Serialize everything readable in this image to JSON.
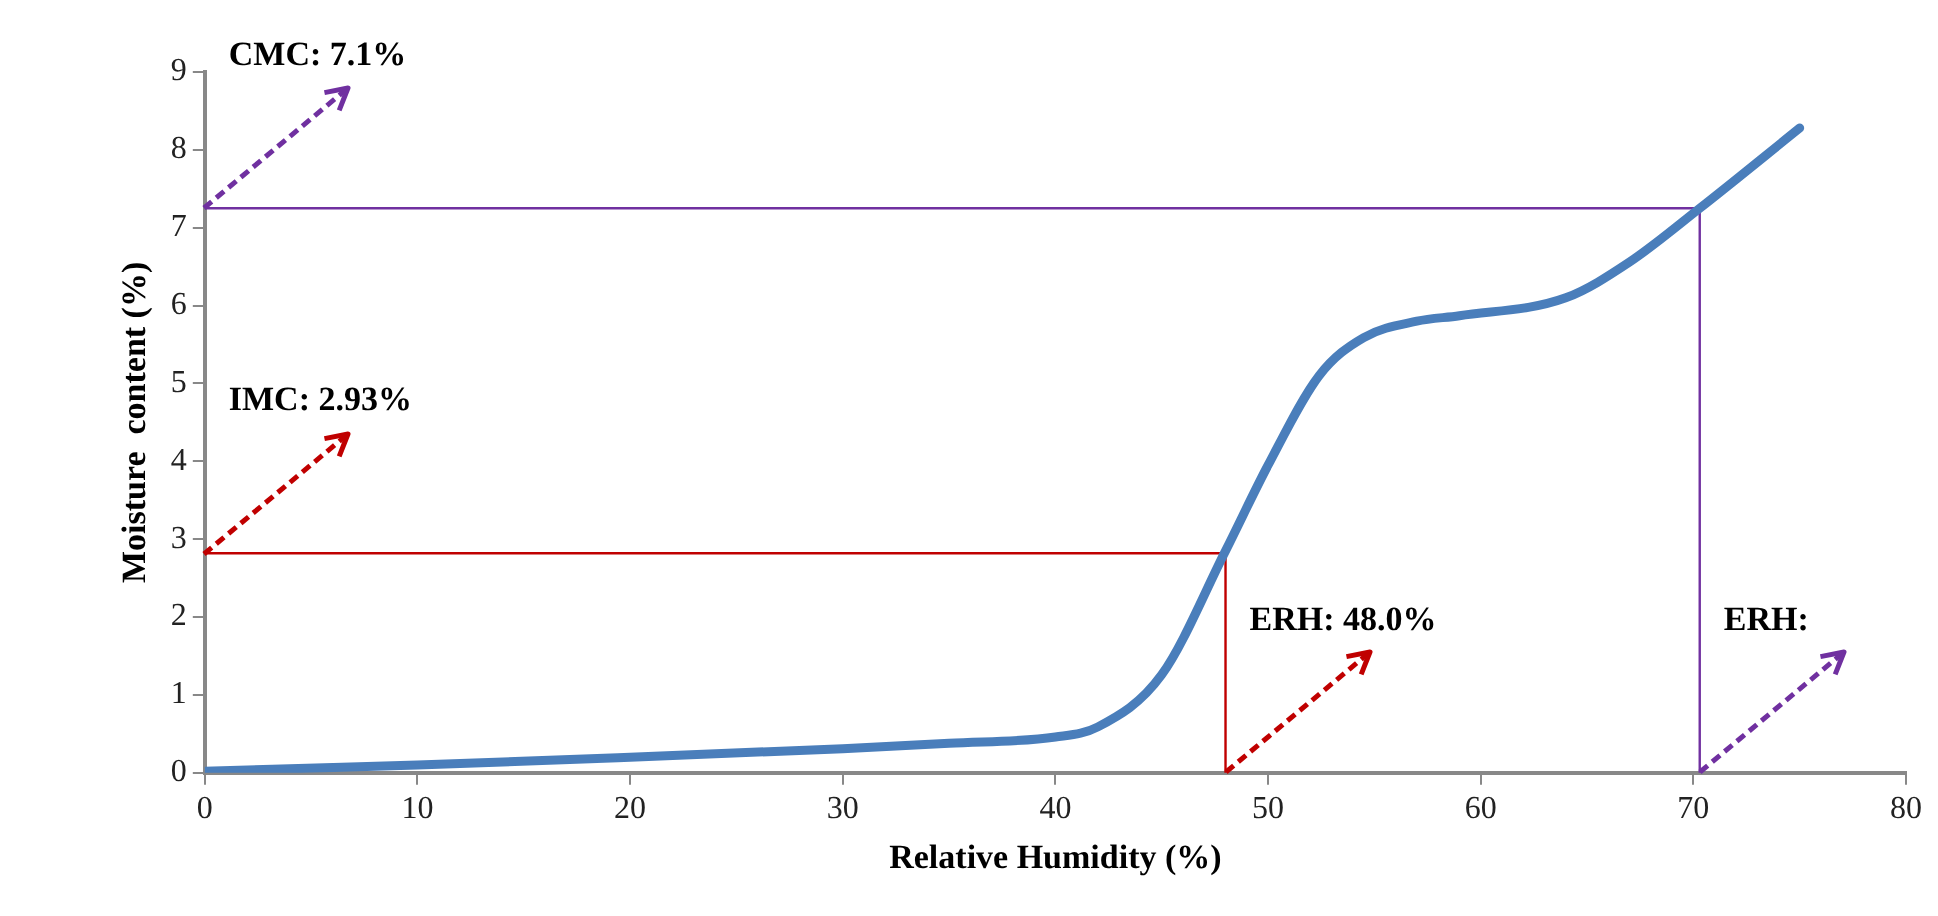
{
  "chart_data": {
    "type": "line",
    "xlabel": "Relative Humidity (%)",
    "ylabel": "Moisture  content (%)",
    "xlim": [
      0,
      80
    ],
    "xticks": [
      0,
      10,
      20,
      30,
      40,
      50,
      60,
      70,
      80
    ],
    "ylim": [
      0,
      9
    ],
    "yticks": [
      0,
      1,
      2,
      3,
      4,
      5,
      6,
      7,
      8,
      9
    ],
    "grid": false,
    "legend": false,
    "marker": "none",
    "line_style": "solid",
    "series": [
      {
        "color": "#4a7ebb",
        "x": [
          0,
          10,
          20,
          30,
          35,
          40,
          42,
          45,
          48,
          50,
          52.4,
          54.5,
          57,
          59,
          64,
          67,
          70.3,
          75
        ],
        "values": [
          0.02,
          0.1,
          0.2,
          0.31,
          0.38,
          0.46,
          0.59,
          1.26,
          2.85,
          3.95,
          5.1,
          5.59,
          5.8,
          5.87,
          6.1,
          6.56,
          7.25,
          8.28
        ]
      },
      {
        "color": "#7030a0",
        "x": [
          0,
          70.3,
          70.3
        ],
        "values": [
          7.25,
          7.25,
          0
        ]
      },
      {
        "color": "#c00000",
        "x": [
          0,
          48,
          48
        ],
        "values": [
          2.82,
          2.82,
          0
        ]
      }
    ],
    "annotations": [
      {
        "text": "CMC: 7.1%",
        "x": 0,
        "y": 7.25
      },
      {
        "text": "IMC: 2.93%",
        "x": 0,
        "y": 2.82
      },
      {
        "text": "ERH: 48.0%",
        "x": 48,
        "y": 0
      },
      {
        "text": "ERH:",
        "x": 70.3,
        "y": 0
      }
    ]
  }
}
